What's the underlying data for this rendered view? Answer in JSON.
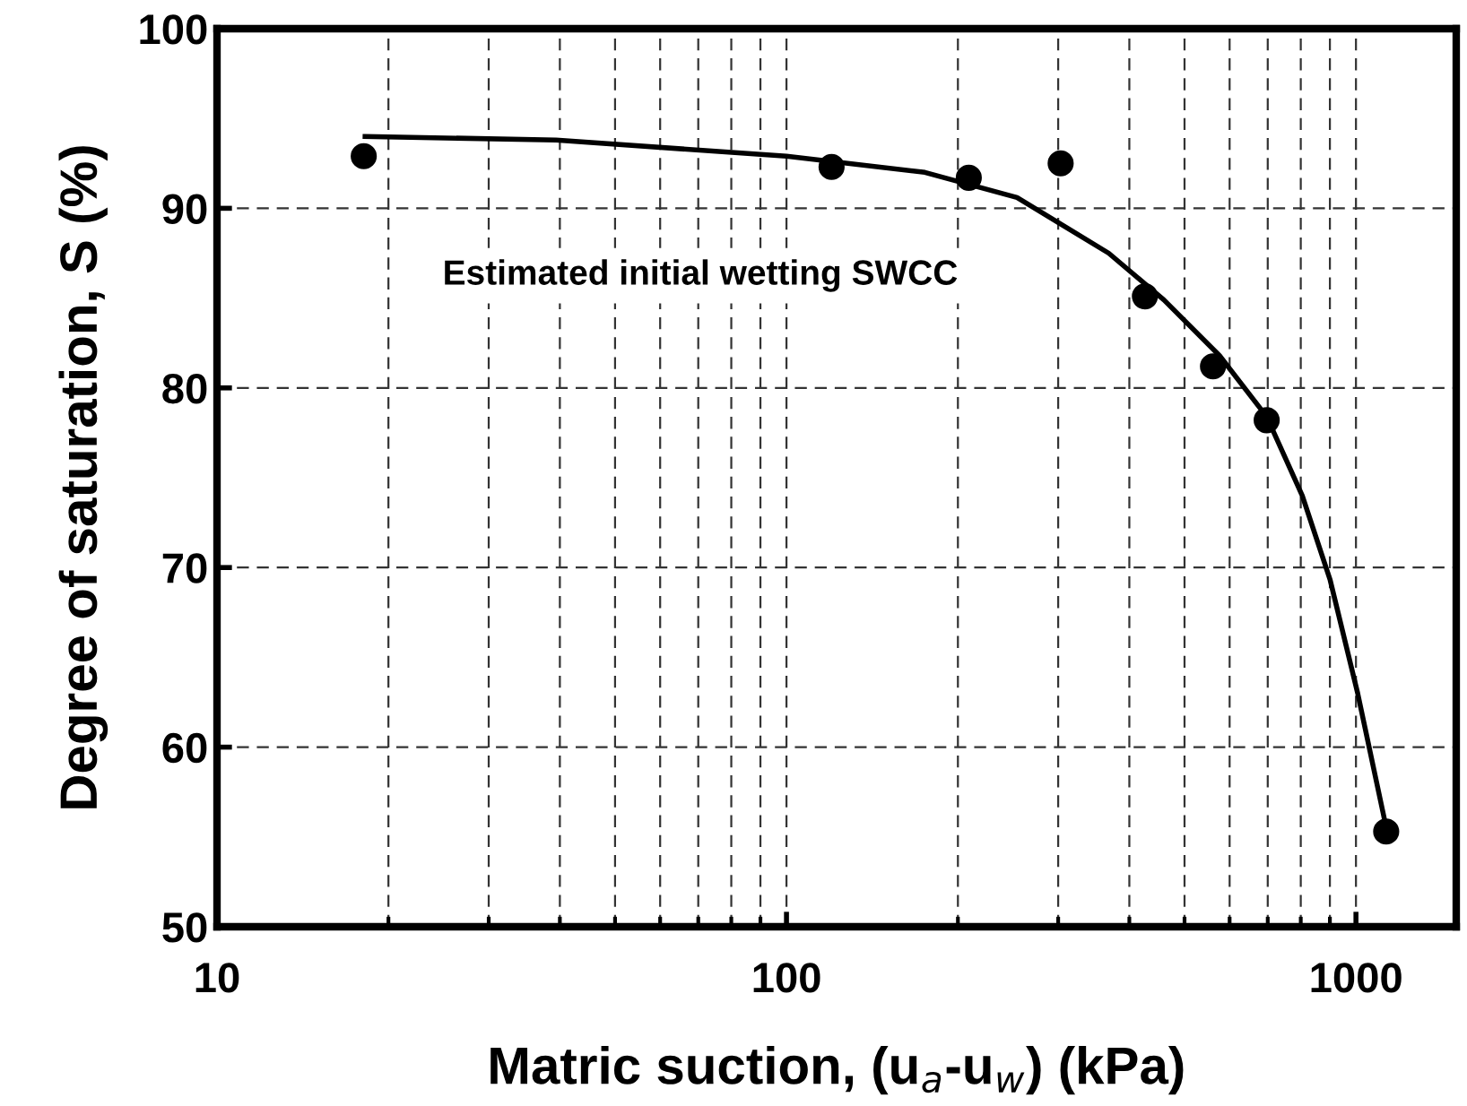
{
  "chart_data": {
    "type": "scatter",
    "xlabel": "Matric suction, (u$_{a}$-u$_{w}$) (kPa)",
    "ylabel": "Degree of saturation, S (%)",
    "log": "x",
    "xlim": [
      10,
      1500
    ],
    "xticks": [
      10,
      100,
      1000
    ],
    "ylim": [
      50,
      100
    ],
    "yticks": [
      50,
      60,
      70,
      80,
      90,
      100
    ],
    "grid": true,
    "annotations": [
      "Estimated initial wetting SWCC"
    ],
    "series": [
      {
        "marker": "circle",
        "color": "#000000",
        "x": [
          18.1,
          120,
          209,
          303,
          426,
          561,
          697,
          1130
        ],
        "values": [
          92.9,
          92.3,
          91.7,
          92.5,
          85.1,
          81.2,
          78.2,
          55.3
        ]
      },
      {
        "type": "line",
        "color": "#000000",
        "line_style": "solid",
        "x": [
          18.2,
          39.4,
          100,
          175,
          254,
          368,
          460,
          576,
          697,
          805,
          901,
          1007,
          1127
        ],
        "values": [
          94.0,
          93.8,
          92.9,
          92.0,
          90.6,
          87.5,
          84.9,
          81.8,
          78.4,
          74.0,
          69.3,
          63.0,
          55.7
        ]
      }
    ]
  }
}
